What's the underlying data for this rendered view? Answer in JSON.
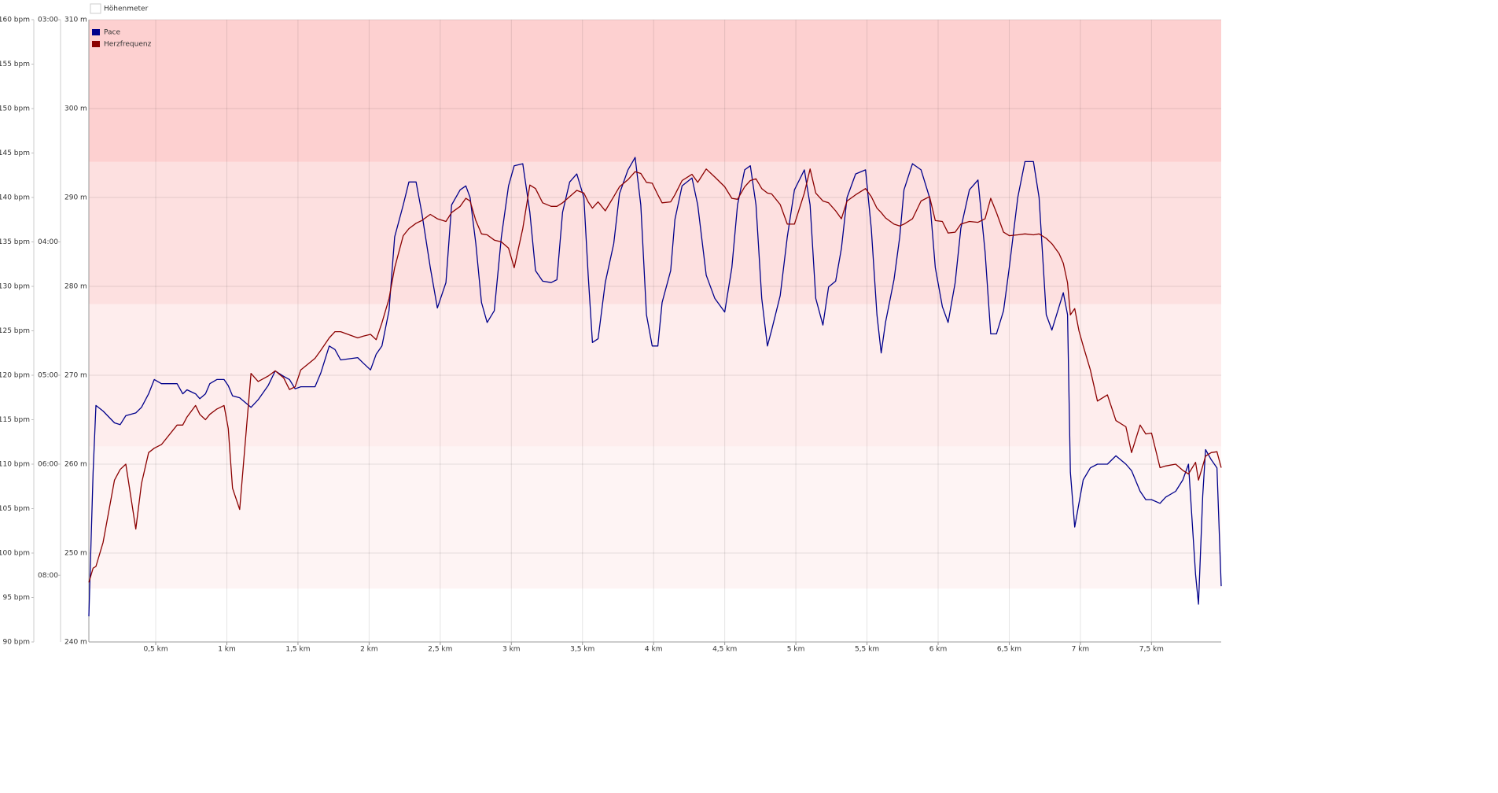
{
  "chart_data": {
    "type": "line",
    "legend_hidden": [
      {
        "name": "Höhenmeter",
        "color": "#ffffff"
      }
    ],
    "x": [
      0.03,
      0.06,
      0.08,
      0.13,
      0.21,
      0.25,
      0.29,
      0.36,
      0.4,
      0.45,
      0.49,
      0.54,
      0.65,
      0.69,
      0.72,
      0.78,
      0.81,
      0.85,
      0.88,
      0.93,
      0.98,
      1.01,
      1.04,
      1.09,
      1.17,
      1.22,
      1.29,
      1.34,
      1.4,
      1.44,
      1.48,
      1.52,
      1.62,
      1.66,
      1.72,
      1.76,
      1.8,
      1.92,
      1.96,
      2.01,
      2.05,
      2.09,
      2.14,
      2.18,
      2.24,
      2.28,
      2.33,
      2.37,
      2.43,
      2.48,
      2.54,
      2.58,
      2.64,
      2.68,
      2.71,
      2.75,
      2.79,
      2.83,
      2.88,
      2.93,
      2.98,
      3.02,
      3.08,
      3.13,
      3.17,
      3.22,
      3.28,
      3.32,
      3.36,
      3.41,
      3.46,
      3.51,
      3.54,
      3.57,
      3.61,
      3.66,
      3.72,
      3.76,
      3.82,
      3.87,
      3.91,
      3.95,
      3.99,
      4.03,
      4.06,
      4.12,
      4.15,
      4.2,
      4.27,
      4.31,
      4.37,
      4.43,
      4.5,
      4.55,
      4.59,
      4.64,
      4.68,
      4.72,
      4.76,
      4.8,
      4.83,
      4.89,
      4.94,
      4.99,
      5.06,
      5.1,
      5.14,
      5.19,
      5.23,
      5.28,
      5.32,
      5.36,
      5.42,
      5.49,
      5.53,
      5.57,
      5.6,
      5.63,
      5.69,
      5.73,
      5.76,
      5.82,
      5.88,
      5.94,
      5.98,
      6.03,
      6.07,
      6.12,
      6.16,
      6.22,
      6.28,
      6.33,
      6.37,
      6.41,
      6.46,
      6.5,
      6.56,
      6.61,
      6.67,
      6.71,
      6.76,
      6.8,
      6.85,
      6.88,
      6.91,
      6.93,
      6.96,
      6.99,
      7.02,
      7.07,
      7.12,
      7.19,
      7.25,
      7.32,
      7.36,
      7.42,
      7.46,
      7.5,
      7.56,
      7.6,
      7.67,
      7.72,
      7.76,
      7.81,
      7.83,
      7.86,
      7.88,
      7.92,
      7.96,
      7.99
    ],
    "series": [
      {
        "name": "Pace",
        "color": "#00008b",
        "axis": "pace",
        "values": [
          9.12,
          6.11,
          5.3,
          5.36,
          5.49,
          5.51,
          5.41,
          5.38,
          5.32,
          5.18,
          5.04,
          5.08,
          5.08,
          5.18,
          5.14,
          5.18,
          5.23,
          5.18,
          5.08,
          5.04,
          5.04,
          5.1,
          5.2,
          5.22,
          5.32,
          5.24,
          5.1,
          4.96,
          5.01,
          5.04,
          5.13,
          5.11,
          5.11,
          4.98,
          4.74,
          4.77,
          4.86,
          4.84,
          4.89,
          4.95,
          4.81,
          4.74,
          4.46,
          3.97,
          3.79,
          3.67,
          3.67,
          3.83,
          4.16,
          4.44,
          4.26,
          3.79,
          3.71,
          3.69,
          3.75,
          4.01,
          4.4,
          4.55,
          4.46,
          3.97,
          3.69,
          3.59,
          3.58,
          3.83,
          4.18,
          4.25,
          4.26,
          4.24,
          3.83,
          3.67,
          3.63,
          3.75,
          4.21,
          4.71,
          4.68,
          4.26,
          4.01,
          3.73,
          3.61,
          3.55,
          3.79,
          4.49,
          4.74,
          4.74,
          4.4,
          4.18,
          3.87,
          3.69,
          3.65,
          3.79,
          4.21,
          4.37,
          4.47,
          4.16,
          3.79,
          3.61,
          3.59,
          3.79,
          4.37,
          4.74,
          4.61,
          4.35,
          3.97,
          3.71,
          3.61,
          3.79,
          4.37,
          4.57,
          4.29,
          4.25,
          4.04,
          3.75,
          3.63,
          3.61,
          3.92,
          4.49,
          4.8,
          4.55,
          4.24,
          3.97,
          3.71,
          3.58,
          3.61,
          3.75,
          4.16,
          4.43,
          4.55,
          4.26,
          3.92,
          3.71,
          3.66,
          4.06,
          4.64,
          4.64,
          4.46,
          4.16,
          3.75,
          3.57,
          3.57,
          3.75,
          4.49,
          4.61,
          4.43,
          4.33,
          4.49,
          6.11,
          6.99,
          6.58,
          6.22,
          6.05,
          6.0,
          6.0,
          5.89,
          6.0,
          6.09,
          6.39,
          6.52,
          6.52,
          6.58,
          6.48,
          6.39,
          6.22,
          6.0,
          7.98,
          8.76,
          6.46,
          5.81,
          5.94,
          6.05,
          8.27
        ]
      },
      {
        "name": "Herzfrequenz",
        "color": "#8b0000",
        "axis": "hr",
        "values": [
          96.7,
          98.3,
          98.5,
          101.2,
          108.2,
          109.4,
          110.0,
          102.7,
          107.8,
          111.3,
          111.8,
          112.2,
          114.4,
          114.4,
          115.3,
          116.6,
          115.6,
          115.0,
          115.6,
          116.2,
          116.6,
          114.0,
          107.3,
          104.9,
          120.2,
          119.3,
          119.9,
          120.5,
          119.7,
          118.4,
          118.7,
          120.6,
          121.9,
          122.8,
          124.2,
          124.9,
          124.9,
          124.2,
          124.4,
          124.6,
          124.0,
          125.9,
          128.6,
          132.1,
          135.7,
          136.5,
          137.1,
          137.4,
          138.1,
          137.6,
          137.3,
          138.3,
          139.0,
          139.9,
          139.6,
          137.4,
          135.9,
          135.8,
          135.2,
          135.0,
          134.3,
          132.1,
          136.5,
          141.4,
          141.0,
          139.4,
          139.0,
          139.0,
          139.4,
          140.1,
          140.8,
          140.5,
          139.5,
          138.8,
          139.5,
          138.5,
          140.1,
          141.2,
          142.0,
          142.9,
          142.7,
          141.7,
          141.6,
          140.3,
          139.4,
          139.5,
          140.3,
          141.9,
          142.6,
          141.7,
          143.2,
          142.3,
          141.2,
          139.9,
          139.8,
          141.2,
          141.9,
          142.1,
          141.0,
          140.5,
          140.4,
          139.2,
          137.0,
          137.0,
          140.5,
          143.2,
          140.5,
          139.6,
          139.4,
          138.5,
          137.6,
          139.6,
          140.3,
          141.0,
          140.1,
          138.8,
          138.3,
          137.7,
          137.0,
          136.8,
          137.0,
          137.6,
          139.6,
          140.1,
          137.4,
          137.3,
          136.0,
          136.1,
          137.0,
          137.3,
          137.2,
          137.6,
          139.9,
          138.3,
          136.1,
          135.7,
          135.8,
          135.9,
          135.8,
          135.9,
          135.4,
          134.8,
          133.7,
          132.6,
          130.4,
          126.8,
          127.5,
          125.0,
          123.3,
          120.6,
          117.1,
          117.8,
          114.9,
          114.2,
          111.3,
          114.4,
          113.4,
          113.5,
          109.6,
          109.8,
          110.0,
          109.3,
          108.9,
          110.2,
          108.2,
          109.8,
          110.9,
          111.3,
          111.4,
          109.6
        ]
      }
    ],
    "xlim": [
      0.03,
      7.99
    ],
    "xticks": [
      {
        "value": 0.5,
        "label": "0,5 km"
      },
      {
        "value": 1,
        "label": "1 km"
      },
      {
        "value": 1.5,
        "label": "1,5 km"
      },
      {
        "value": 2,
        "label": "2 km"
      },
      {
        "value": 2.5,
        "label": "2,5 km"
      },
      {
        "value": 3,
        "label": "3 km"
      },
      {
        "value": 3.5,
        "label": "3,5 km"
      },
      {
        "value": 4,
        "label": "4 km"
      },
      {
        "value": 4.5,
        "label": "4,5 km"
      },
      {
        "value": 5,
        "label": "5 km"
      },
      {
        "value": 5.5,
        "label": "5,5 km"
      },
      {
        "value": 6,
        "label": "6 km"
      },
      {
        "value": 6.5,
        "label": "6,5 km"
      },
      {
        "value": 7,
        "label": "7 km"
      },
      {
        "value": 7.5,
        "label": "7,5 km"
      }
    ],
    "hrlim": [
      90,
      160
    ],
    "hrticks": [
      {
        "value": 90,
        "label": "90 bpm"
      },
      {
        "value": 95,
        "label": "95 bpm"
      },
      {
        "value": 100,
        "label": "100 bpm"
      },
      {
        "value": 105,
        "label": "105 bpm"
      },
      {
        "value": 110,
        "label": "110 bpm"
      },
      {
        "value": 115,
        "label": "115 bpm"
      },
      {
        "value": 120,
        "label": "120 bpm"
      },
      {
        "value": 125,
        "label": "125 bpm"
      },
      {
        "value": 130,
        "label": "130 bpm"
      },
      {
        "value": 135,
        "label": "135 bpm"
      },
      {
        "value": 140,
        "label": "140 bpm"
      },
      {
        "value": 145,
        "label": "145 bpm"
      },
      {
        "value": 150,
        "label": "150 bpm"
      },
      {
        "value": 155,
        "label": "155 bpm"
      },
      {
        "value": 160,
        "label": "160 bpm"
      }
    ],
    "pacelim": [
      10,
      3
    ],
    "pace_scale": "reciprocal",
    "paceticks": [
      {
        "value": 3,
        "label": "03:00"
      },
      {
        "value": 4,
        "label": "04:00"
      },
      {
        "value": 5,
        "label": "05:00"
      },
      {
        "value": 6,
        "label": "06:00"
      },
      {
        "value": 8,
        "label": "08:00"
      }
    ],
    "altlim": [
      240,
      310
    ],
    "altticks": [
      {
        "value": 240,
        "label": "240 m"
      },
      {
        "value": 250,
        "label": "250 m"
      },
      {
        "value": 260,
        "label": "260 m"
      },
      {
        "value": 270,
        "label": "270 m"
      },
      {
        "value": 280,
        "label": "280 m"
      },
      {
        "value": 290,
        "label": "290 m"
      },
      {
        "value": 300,
        "label": "300 m"
      },
      {
        "value": 310,
        "label": "310 m"
      }
    ],
    "grid": true,
    "zones": [
      {
        "from": 96,
        "to": 112,
        "color": "#fef4f4"
      },
      {
        "from": 112,
        "to": 128,
        "color": "#feeded"
      },
      {
        "from": 128,
        "to": 144,
        "color": "#fde0e0"
      },
      {
        "from": 144,
        "to": 160,
        "color": "#fdd0d0"
      }
    ]
  }
}
